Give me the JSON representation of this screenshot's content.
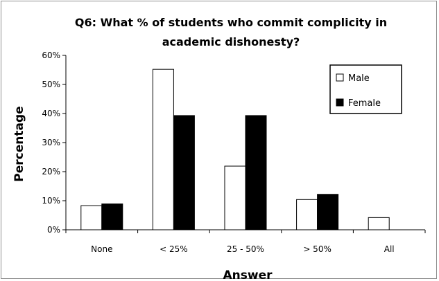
{
  "chart_data": {
    "type": "bar",
    "title_lines": [
      "Q6: What % of students who commit complicity in",
      "academic dishonesty?"
    ],
    "xlabel": "Answer",
    "ylabel": "Percentage",
    "categories": [
      "None",
      "< 25%",
      "25 - 50%",
      "> 50%",
      "All"
    ],
    "series": [
      {
        "name": "Male",
        "values": [
          8.3,
          55.2,
          21.9,
          10.4,
          4.2
        ],
        "color": "#ffffff"
      },
      {
        "name": "Female",
        "values": [
          8.9,
          39.3,
          39.3,
          12.2,
          0
        ],
        "color": "#000000"
      }
    ],
    "ylim": [
      0,
      60
    ],
    "yticks": [
      0,
      10,
      20,
      30,
      40,
      50,
      60
    ],
    "ytick_labels": [
      "0%",
      "10%",
      "20%",
      "30%",
      "40%",
      "50%",
      "60%"
    ],
    "grid": false,
    "legend_position": "top-right"
  }
}
